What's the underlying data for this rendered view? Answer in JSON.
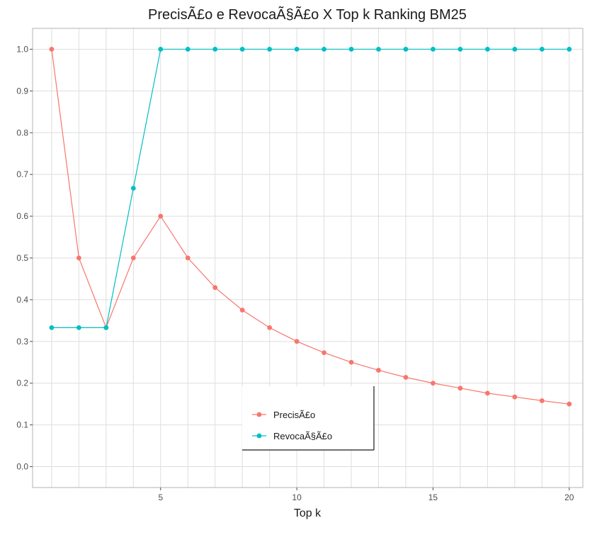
{
  "chart_data": {
    "type": "line",
    "title": "PrecisÃ£o e RevocaÃ§Ã£o X Top k Ranking BM25",
    "xlabel": "Top k",
    "ylabel": "",
    "xlim": [
      0.3,
      20.5
    ],
    "ylim": [
      -0.05,
      1.05
    ],
    "x_ticks": [
      5,
      10,
      15,
      20
    ],
    "y_ticks": [
      0.0,
      0.1,
      0.2,
      0.3,
      0.4,
      0.5,
      0.6,
      0.7,
      0.8,
      0.9,
      1.0
    ],
    "x": [
      1,
      2,
      3,
      4,
      5,
      6,
      7,
      8,
      9,
      10,
      11,
      12,
      13,
      14,
      15,
      16,
      17,
      18,
      19,
      20
    ],
    "grid": true,
    "legend_position": "bottom-center",
    "series": [
      {
        "name": "PrecisÃ£o",
        "color": "#f8766d",
        "values": [
          1.0,
          0.5,
          0.333,
          0.5,
          0.6,
          0.5,
          0.429,
          0.375,
          0.333,
          0.3,
          0.273,
          0.25,
          0.231,
          0.214,
          0.2,
          0.188,
          0.176,
          0.167,
          0.158,
          0.15
        ]
      },
      {
        "name": "RevocaÃ§Ã£o",
        "color": "#00bfc4",
        "values": [
          0.333,
          0.333,
          0.333,
          0.667,
          1.0,
          1.0,
          1.0,
          1.0,
          1.0,
          1.0,
          1.0,
          1.0,
          1.0,
          1.0,
          1.0,
          1.0,
          1.0,
          1.0,
          1.0,
          1.0
        ]
      }
    ]
  }
}
